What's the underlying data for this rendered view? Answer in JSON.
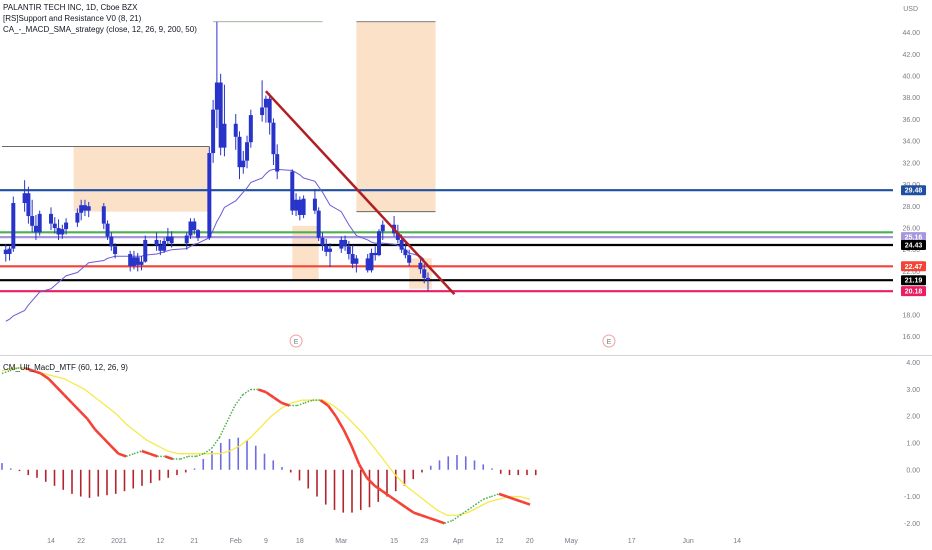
{
  "legend": {
    "symbol": "PALANTIR TECH INC, 1D, Cboe BZX",
    "indicator_1": "[RS]Support and Resistance V0 (8, 21)",
    "indicator_2": "CA_-_MACD_SMA_strategy (close, 12, 26, 9, 200, 50)",
    "indicator_3": "CM_Ult_MacD_MTF (60, 12, 26, 9)"
  },
  "currency": "USD",
  "colors": {
    "bull": "#2834c9",
    "bear": "#2834c9",
    "trendline": "#b11f24",
    "sma": "#6b5cd6",
    "zone": "#fcdcc0",
    "macd_line_up": "#4caf50",
    "macd_line_down": "#f44336",
    "signal": "#f5ea4a",
    "hist_pos": "#6c6ce0",
    "hist_neg": "#b3242f"
  },
  "chart_data": [
    {
      "type": "candlestick",
      "title": "PALANTIR TECH INC, 1D, Cboe BZX",
      "ylabel": "USD",
      "ylim": [
        14.3,
        47
      ],
      "y_ticks": [
        16,
        18,
        20,
        22,
        24,
        26,
        28,
        30,
        32,
        34,
        36,
        38,
        40,
        42,
        44,
        46
      ],
      "x_ticks": [
        "14",
        "22",
        "2021",
        "12",
        "21",
        "Feb",
        "9",
        "18",
        "Mar",
        "15",
        "23",
        "Apr",
        "12",
        "20",
        "May",
        "17",
        "Jun",
        "14"
      ],
      "candles": [
        {
          "d": "2020-12-02",
          "o": 24.0,
          "h": 24.5,
          "l": 22.9,
          "c": 23.6
        },
        {
          "d": "2020-12-03",
          "o": 23.6,
          "h": 24.3,
          "l": 23.0,
          "c": 24.1
        },
        {
          "d": "2020-12-04",
          "o": 24.1,
          "h": 28.9,
          "l": 23.8,
          "c": 28.3
        },
        {
          "d": "2020-12-07",
          "o": 28.3,
          "h": 30.4,
          "l": 27.5,
          "c": 29.2
        },
        {
          "d": "2020-12-08",
          "o": 29.2,
          "h": 29.8,
          "l": 26.4,
          "c": 27.1
        },
        {
          "d": "2020-12-09",
          "o": 27.1,
          "h": 28.6,
          "l": 25.6,
          "c": 26.2
        },
        {
          "d": "2020-12-10",
          "o": 26.2,
          "h": 27.2,
          "l": 24.9,
          "c": 25.6
        },
        {
          "d": "2020-12-11",
          "o": 25.6,
          "h": 27.6,
          "l": 25.3,
          "c": 27.3
        },
        {
          "d": "2020-12-14",
          "o": 27.3,
          "h": 27.9,
          "l": 25.8,
          "c": 26.4
        },
        {
          "d": "2020-12-15",
          "o": 26.4,
          "h": 27.0,
          "l": 25.5,
          "c": 26.0
        },
        {
          "d": "2020-12-16",
          "o": 26.0,
          "h": 26.8,
          "l": 24.9,
          "c": 25.4
        },
        {
          "d": "2020-12-17",
          "o": 25.4,
          "h": 26.3,
          "l": 25.0,
          "c": 25.9
        },
        {
          "d": "2020-12-18",
          "o": 25.9,
          "h": 26.9,
          "l": 25.4,
          "c": 26.5
        },
        {
          "d": "2020-12-21",
          "o": 26.5,
          "h": 27.8,
          "l": 26.1,
          "c": 27.4
        },
        {
          "d": "2020-12-22",
          "o": 27.4,
          "h": 28.6,
          "l": 26.7,
          "c": 28.1
        },
        {
          "d": "2020-12-23",
          "o": 28.1,
          "h": 28.6,
          "l": 27.1,
          "c": 27.6
        },
        {
          "d": "2020-12-24",
          "o": 27.6,
          "h": 28.4,
          "l": 27.0,
          "c": 28.0
        },
        {
          "d": "2020-12-28",
          "o": 28.0,
          "h": 28.3,
          "l": 25.9,
          "c": 26.4
        },
        {
          "d": "2020-12-29",
          "o": 26.4,
          "h": 26.7,
          "l": 24.9,
          "c": 25.2
        },
        {
          "d": "2020-12-30",
          "o": 25.2,
          "h": 25.6,
          "l": 23.9,
          "c": 24.3
        },
        {
          "d": "2020-12-31",
          "o": 24.3,
          "h": 24.6,
          "l": 23.2,
          "c": 23.6
        },
        {
          "d": "2021-01-04",
          "o": 23.6,
          "h": 23.9,
          "l": 22.0,
          "c": 22.5
        },
        {
          "d": "2021-01-05",
          "o": 22.5,
          "h": 23.9,
          "l": 22.2,
          "c": 23.3
        },
        {
          "d": "2021-01-06",
          "o": 23.3,
          "h": 23.7,
          "l": 22.0,
          "c": 22.6
        },
        {
          "d": "2021-01-07",
          "o": 22.6,
          "h": 23.4,
          "l": 22.1,
          "c": 22.9
        },
        {
          "d": "2021-01-08",
          "o": 22.9,
          "h": 25.3,
          "l": 22.8,
          "c": 24.9
        },
        {
          "d": "2021-01-11",
          "o": 24.9,
          "h": 25.6,
          "l": 23.9,
          "c": 24.4
        },
        {
          "d": "2021-01-12",
          "o": 24.4,
          "h": 24.9,
          "l": 23.5,
          "c": 23.9
        },
        {
          "d": "2021-01-13",
          "o": 23.9,
          "h": 25.1,
          "l": 23.7,
          "c": 24.8
        },
        {
          "d": "2021-01-14",
          "o": 24.8,
          "h": 26.0,
          "l": 24.5,
          "c": 25.2
        },
        {
          "d": "2021-01-15",
          "o": 25.2,
          "h": 25.7,
          "l": 24.2,
          "c": 24.6
        },
        {
          "d": "2021-01-19",
          "o": 24.6,
          "h": 25.6,
          "l": 24.0,
          "c": 25.3
        },
        {
          "d": "2021-01-20",
          "o": 25.3,
          "h": 26.9,
          "l": 25.0,
          "c": 26.6
        },
        {
          "d": "2021-01-21",
          "o": 26.6,
          "h": 26.9,
          "l": 25.4,
          "c": 25.8
        },
        {
          "d": "2021-01-22",
          "o": 25.8,
          "h": 25.9,
          "l": 24.8,
          "c": 25.1
        },
        {
          "d": "2021-01-25",
          "o": 25.1,
          "h": 33.5,
          "l": 24.9,
          "c": 32.9
        },
        {
          "d": "2021-01-26",
          "o": 32.9,
          "h": 37.8,
          "l": 32.0,
          "c": 36.9
        },
        {
          "d": "2021-01-27",
          "o": 36.9,
          "h": 45.0,
          "l": 35.2,
          "c": 39.4
        },
        {
          "d": "2021-01-28",
          "o": 39.4,
          "h": 40.2,
          "l": 32.7,
          "c": 33.4
        },
        {
          "d": "2021-01-29",
          "o": 33.4,
          "h": 39.2,
          "l": 32.6,
          "c": 35.6
        },
        {
          "d": "2021-02-01",
          "o": 35.6,
          "h": 36.5,
          "l": 33.2,
          "c": 34.4
        },
        {
          "d": "2021-02-02",
          "o": 34.4,
          "h": 34.9,
          "l": 30.5,
          "c": 31.6
        },
        {
          "d": "2021-02-03",
          "o": 31.6,
          "h": 33.1,
          "l": 31.0,
          "c": 32.2
        },
        {
          "d": "2021-02-04",
          "o": 32.2,
          "h": 34.5,
          "l": 31.5,
          "c": 33.9
        },
        {
          "d": "2021-02-05",
          "o": 33.9,
          "h": 36.9,
          "l": 33.4,
          "c": 36.4
        },
        {
          "d": "2021-02-08",
          "o": 36.4,
          "h": 39.6,
          "l": 35.8,
          "c": 37.1
        },
        {
          "d": "2021-02-09",
          "o": 37.1,
          "h": 38.2,
          "l": 35.7,
          "c": 37.9
        },
        {
          "d": "2021-02-10",
          "o": 37.9,
          "h": 38.4,
          "l": 34.6,
          "c": 35.7
        },
        {
          "d": "2021-02-11",
          "o": 35.7,
          "h": 36.1,
          "l": 31.8,
          "c": 32.8
        },
        {
          "d": "2021-02-12",
          "o": 32.8,
          "h": 33.7,
          "l": 30.5,
          "c": 31.2
        },
        {
          "d": "2021-02-16",
          "o": 31.2,
          "h": 31.4,
          "l": 27.2,
          "c": 27.6
        },
        {
          "d": "2021-02-17",
          "o": 27.6,
          "h": 29.2,
          "l": 27.1,
          "c": 28.6
        },
        {
          "d": "2021-02-18",
          "o": 28.6,
          "h": 28.9,
          "l": 26.7,
          "c": 27.2
        },
        {
          "d": "2021-02-19",
          "o": 27.2,
          "h": 29.0,
          "l": 26.9,
          "c": 28.7
        },
        {
          "d": "2021-02-22",
          "o": 28.7,
          "h": 29.6,
          "l": 27.3,
          "c": 27.6
        },
        {
          "d": "2021-02-23",
          "o": 27.6,
          "h": 27.9,
          "l": 24.8,
          "c": 25.1
        },
        {
          "d": "2021-02-24",
          "o": 25.1,
          "h": 25.6,
          "l": 23.9,
          "c": 24.4
        },
        {
          "d": "2021-02-25",
          "o": 24.4,
          "h": 25.0,
          "l": 23.4,
          "c": 23.8
        },
        {
          "d": "2021-02-26",
          "o": 23.8,
          "h": 24.6,
          "l": 22.4,
          "c": 24.1
        },
        {
          "d": "2021-03-01",
          "o": 24.1,
          "h": 25.2,
          "l": 23.7,
          "c": 24.9
        },
        {
          "d": "2021-03-02",
          "o": 24.9,
          "h": 25.3,
          "l": 23.9,
          "c": 24.3
        },
        {
          "d": "2021-03-03",
          "o": 24.3,
          "h": 24.8,
          "l": 23.1,
          "c": 23.6
        },
        {
          "d": "2021-03-04",
          "o": 23.6,
          "h": 24.4,
          "l": 22.3,
          "c": 22.7
        },
        {
          "d": "2021-03-05",
          "o": 22.7,
          "h": 23.5,
          "l": 21.9,
          "c": 23.2
        },
        {
          "d": "2021-03-08",
          "o": 23.2,
          "h": 23.6,
          "l": 21.9,
          "c": 22.1
        },
        {
          "d": "2021-03-09",
          "o": 22.1,
          "h": 24.1,
          "l": 21.9,
          "c": 23.7
        },
        {
          "d": "2021-03-10",
          "o": 23.7,
          "h": 24.3,
          "l": 23.0,
          "c": 23.5
        },
        {
          "d": "2021-03-11",
          "o": 23.5,
          "h": 25.9,
          "l": 23.4,
          "c": 25.7
        },
        {
          "d": "2021-03-12",
          "o": 25.7,
          "h": 26.7,
          "l": 24.9,
          "c": 26.3
        },
        {
          "d": "2021-03-15",
          "o": 26.3,
          "h": 27.1,
          "l": 25.2,
          "c": 25.5
        },
        {
          "d": "2021-03-16",
          "o": 25.5,
          "h": 26.3,
          "l": 24.6,
          "c": 24.9
        },
        {
          "d": "2021-03-17",
          "o": 24.9,
          "h": 25.4,
          "l": 23.7,
          "c": 24.0
        },
        {
          "d": "2021-03-18",
          "o": 24.0,
          "h": 24.6,
          "l": 23.2,
          "c": 23.5
        },
        {
          "d": "2021-03-19",
          "o": 23.5,
          "h": 24.0,
          "l": 22.5,
          "c": 22.8
        },
        {
          "d": "2021-03-22",
          "o": 22.8,
          "h": 23.1,
          "l": 21.8,
          "c": 22.2
        },
        {
          "d": "2021-03-23",
          "o": 22.2,
          "h": 22.7,
          "l": 20.9,
          "c": 21.4
        },
        {
          "d": "2021-03-24",
          "o": 21.4,
          "h": 21.9,
          "l": 20.2,
          "c": 21.2
        }
      ],
      "sma_values": [
        17.4,
        17.6,
        17.9,
        18.4,
        18.9,
        19.3,
        19.7,
        20.1,
        20.4,
        20.7,
        21.0,
        21.3,
        21.6,
        21.9,
        22.2,
        22.5,
        22.8,
        23.0,
        23.2,
        23.3,
        23.4,
        23.4,
        23.4,
        23.4,
        23.4,
        23.5,
        23.6,
        23.7,
        23.8,
        23.9,
        24.0,
        24.1,
        24.3,
        24.5,
        24.6,
        25.1,
        25.8,
        26.6,
        27.2,
        27.9,
        28.5,
        28.9,
        29.3,
        29.7,
        30.2,
        30.6,
        31.0,
        31.3,
        31.4,
        31.4,
        31.3,
        31.1,
        30.9,
        30.6,
        30.3,
        29.8,
        29.3,
        28.7,
        28.1,
        27.5,
        26.9,
        26.3,
        25.8,
        25.3,
        24.9,
        24.7,
        24.6,
        24.6,
        24.6,
        24.5,
        24.4,
        24.2,
        24.0,
        23.7,
        23.4,
        23.1
      ],
      "sma_name": "",
      "trendline": {
        "from": {
          "d": "2021-02-09",
          "y": 38.6
        },
        "to": {
          "d": "2021-03-31",
          "y": 19.9
        }
      },
      "horizontal_levels": [
        {
          "y": 29.48,
          "label": "29.48",
          "color": "#1e4fa0"
        },
        {
          "y": 25.16,
          "label": "25.16",
          "color": "#a796dd"
        },
        {
          "y": 24.43,
          "label": "24.43",
          "color": "#000000"
        },
        {
          "y": 22.47,
          "label": "22.47",
          "color": "#f44336"
        },
        {
          "y": 21.19,
          "label": "21.19",
          "color": "#000000"
        },
        {
          "y": 20.18,
          "label": "20.18",
          "color": "#e91e63"
        },
        {
          "y": 25.6,
          "label": "",
          "color": "#4caf50"
        }
      ],
      "earnings_markers": [
        "E",
        "E"
      ],
      "grid": false
    },
    {
      "type": "line",
      "title": "CM_Ult_MacD_MTF (60, 12, 26, 9)",
      "ylim": [
        -2.25,
        4.25
      ],
      "y_ticks": [
        "4.00",
        "3.00",
        "2.00",
        "1.00",
        "0.00",
        "-1.00",
        "-2.00"
      ],
      "series": [
        {
          "name": "",
          "values": [
            3.6,
            3.7,
            3.8,
            3.8,
            3.7,
            3.6,
            3.4,
            3.1,
            2.8,
            2.5,
            2.2,
            1.9,
            1.5,
            1.2,
            0.9,
            0.6,
            0.5,
            0.6,
            0.7,
            0.6,
            0.5,
            0.5,
            0.4,
            0.4,
            0.5,
            0.5,
            0.6,
            0.8,
            1.2,
            1.8,
            2.4,
            2.8,
            3.0,
            3.0,
            2.9,
            2.7,
            2.5,
            2.4,
            2.4,
            2.5,
            2.6,
            2.6,
            2.4,
            2.0,
            1.5,
            0.9,
            0.2,
            -0.3,
            -0.6,
            -0.8,
            -1.0,
            -1.2,
            -1.4,
            -1.6,
            -1.7,
            -1.8,
            -1.9,
            -2.0,
            -1.9,
            -1.7,
            -1.5,
            -1.3,
            -1.1,
            -1.0,
            -0.9,
            -1.0,
            -1.1,
            -1.2,
            -1.3
          ]
        },
        {
          "name": "",
          "values": [
            3.7,
            3.8,
            3.8,
            3.7,
            3.6,
            3.5,
            3.4,
            3.2,
            3.0,
            2.7,
            2.4,
            2.1,
            1.7,
            1.4,
            1.1,
            0.9,
            0.7,
            0.6,
            0.6,
            0.6,
            0.6,
            0.6,
            0.7,
            0.9,
            1.2,
            1.6,
            2.0,
            2.3,
            2.5,
            2.6,
            2.6,
            2.6,
            2.4,
            2.1,
            1.7,
            1.3,
            0.8,
            0.3,
            -0.2,
            -0.6,
            -0.9,
            -1.2,
            -1.5,
            -1.7,
            -1.7,
            -1.6,
            -1.4,
            -1.2,
            -1.1,
            -1.0,
            -1.0,
            -1.1
          ]
        }
      ],
      "histogram": [
        0.25,
        0.05,
        -0.05,
        -0.2,
        -0.3,
        -0.45,
        -0.6,
        -0.75,
        -0.9,
        -1.0,
        -1.05,
        -1.0,
        -0.95,
        -0.9,
        -0.8,
        -0.7,
        -0.6,
        -0.5,
        -0.4,
        -0.3,
        -0.2,
        -0.1,
        0.05,
        0.4,
        0.7,
        1.0,
        1.15,
        1.2,
        1.1,
        0.9,
        0.6,
        0.35,
        0.1,
        -0.1,
        -0.4,
        -0.7,
        -1.0,
        -1.3,
        -1.5,
        -1.6,
        -1.6,
        -1.5,
        -1.4,
        -1.2,
        -1.0,
        -0.8,
        -0.6,
        -0.35,
        -0.1,
        0.15,
        0.35,
        0.5,
        0.55,
        0.5,
        0.35,
        0.2,
        0.05,
        -0.15,
        -0.2,
        -0.2,
        -0.2,
        -0.2
      ],
      "grid": false
    }
  ]
}
